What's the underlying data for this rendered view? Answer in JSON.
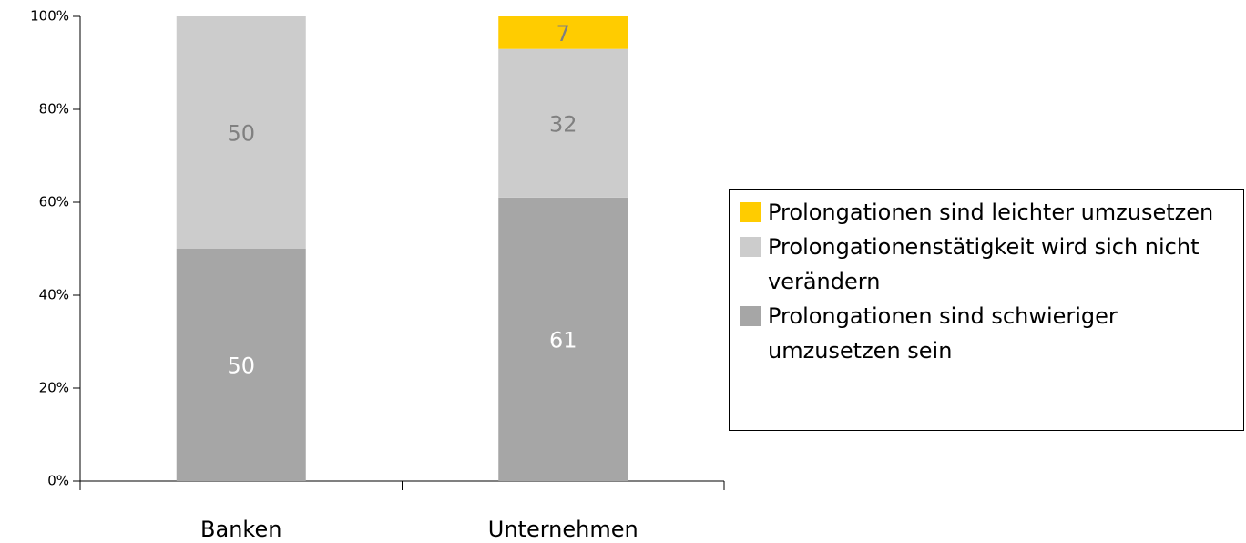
{
  "chart_data": {
    "type": "bar",
    "stacked": true,
    "categories": [
      "Banken",
      "Unternehmen"
    ],
    "series": [
      {
        "name": "Prolongationen sind schwieriger umzusetzen sein",
        "color": "#a6a6a6",
        "values": [
          50,
          61
        ]
      },
      {
        "name": "Prolongationenstätigkeit wird sich nicht verändern",
        "color": "#cccccc",
        "values": [
          50,
          32
        ]
      },
      {
        "name": "Prolongationen sind leichter umzusetzen",
        "color": "#ffcc00",
        "values": [
          null,
          7
        ]
      }
    ],
    "ylim": [
      0,
      100
    ],
    "yticks": [
      {
        "value": 0,
        "label": "0%"
      },
      {
        "value": 20,
        "label": "20%"
      },
      {
        "value": 40,
        "label": "40%"
      },
      {
        "value": 60,
        "label": "60%"
      },
      {
        "value": 80,
        "label": "80%"
      },
      {
        "value": 100,
        "label": "100%"
      }
    ],
    "grid": false,
    "legend": "right"
  }
}
